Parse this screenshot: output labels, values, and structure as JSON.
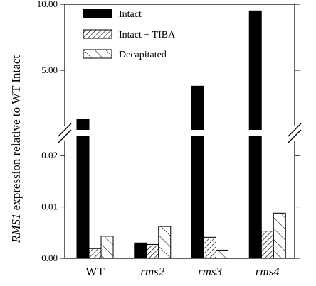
{
  "chart_data": {
    "type": "bar",
    "axis_break": true,
    "categories": [
      "WT",
      "rms2",
      "rms3",
      "rms4"
    ],
    "categories_italic": [
      false,
      true,
      true,
      true
    ],
    "series": [
      {
        "name": "Intact",
        "pattern": "solid",
        "values": [
          1.3,
          0.003,
          3.8,
          9.5
        ]
      },
      {
        "name": "Intact + TIBA",
        "pattern": "hatch-dense",
        "values": [
          0.0019,
          0.0027,
          0.0041,
          0.0053
        ]
      },
      {
        "name": "Decapitated",
        "pattern": "hatch-sparse",
        "values": [
          0.0043,
          0.0062,
          0.0016,
          0.0088
        ]
      }
    ],
    "ylabel_italic": "RMS1",
    "ylabel_rest": " expression relative to WT Intact",
    "lower_segment": {
      "ylim": [
        0,
        0.025
      ],
      "ticks": [
        "0.00",
        "0.01",
        "0.02"
      ],
      "tick_values": [
        0,
        0.01,
        0.02
      ]
    },
    "upper_segment": {
      "ylim": [
        0,
        10
      ],
      "ticks": [
        "5.00",
        "10.00"
      ],
      "tick_values": [
        5,
        10
      ]
    },
    "legend_position": "top-left",
    "grid": false
  }
}
